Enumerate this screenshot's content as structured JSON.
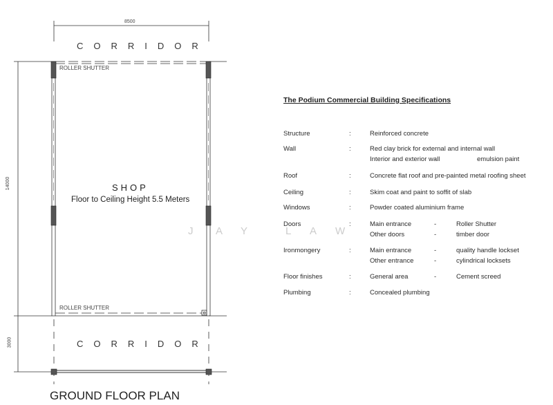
{
  "plan": {
    "width_dim": "8500",
    "length_dim": "14000",
    "corridor_dim": "3000",
    "corridor_top": "CORRIDOR",
    "corridor_bottom": "CORRIDOR",
    "shutter_top": "ROLLER SHUTTER",
    "shutter_bottom": "ROLLER SHUTTER",
    "room_name": "SHOP",
    "room_note": "Floor to Ceiling Height 5.5 Meters",
    "plan_title": "GROUND FLOOR PLAN"
  },
  "watermark": [
    "J",
    "A",
    "Y",
    "L",
    "A",
    "W"
  ],
  "specs": {
    "title": "The Podium Commercial Building Specifications",
    "rows": [
      {
        "label": "Structure",
        "lines": [
          [
            "Reinforced concrete"
          ]
        ]
      },
      {
        "label": "Wall",
        "lines": [
          [
            "Red clay brick for external and internal wall"
          ],
          [
            "Interior and exterior wall",
            "-",
            "emulsion paint"
          ]
        ]
      },
      {
        "label": "Roof",
        "lines": [
          [
            "Concrete flat roof and pre-painted metal roofing sheet"
          ]
        ]
      },
      {
        "label": "Ceiling",
        "lines": [
          [
            "Skim coat and paint to soffit of slab"
          ]
        ]
      },
      {
        "label": "Windows",
        "lines": [
          [
            "Powder coated aluminium frame"
          ]
        ]
      },
      {
        "label": "Doors",
        "lines": [
          [
            "Main entrance",
            "-",
            "Roller Shutter"
          ],
          [
            "Other doors",
            "-",
            "timber door"
          ]
        ]
      },
      {
        "label": "Ironmongery",
        "lines": [
          [
            "Main entrance",
            "-",
            "quality handle lockset"
          ],
          [
            "Other entrance",
            "-",
            "cylindrical locksets"
          ]
        ]
      },
      {
        "label": "Floor finishes",
        "lines": [
          [
            "General area",
            "-",
            "Cement screed"
          ]
        ]
      },
      {
        "label": "Plumbing",
        "lines": [
          [
            "Concealed plumbing"
          ]
        ]
      }
    ]
  }
}
